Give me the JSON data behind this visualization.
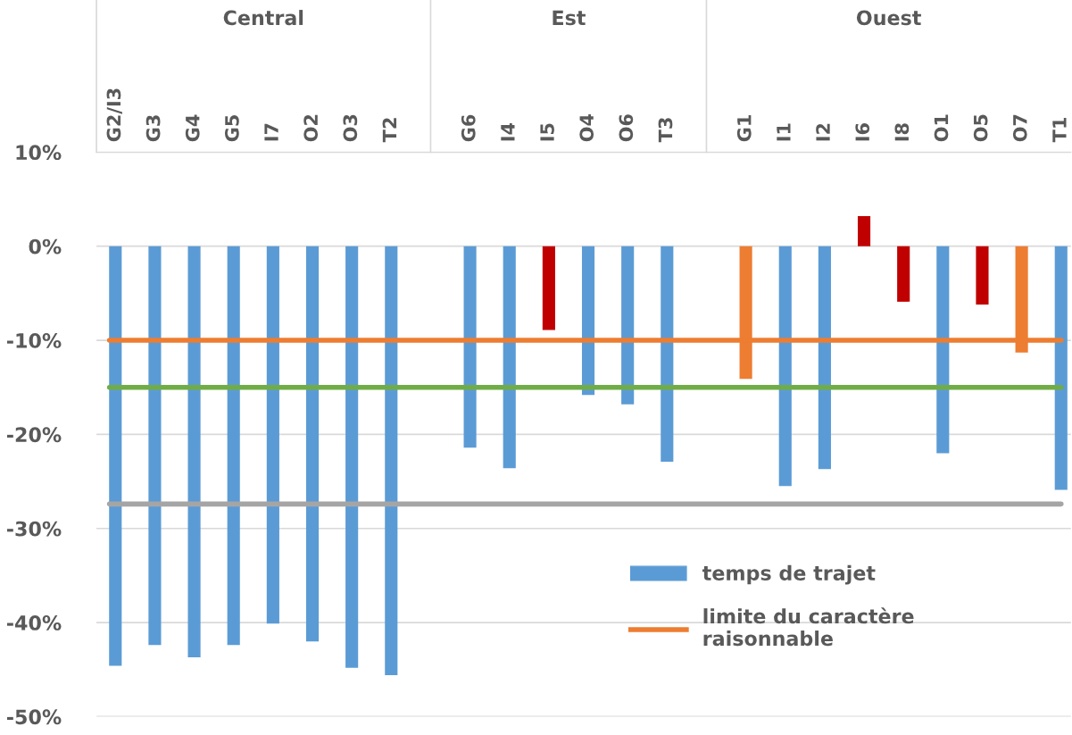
{
  "chart_data": {
    "type": "bar",
    "categories": [
      "G2/I3",
      "G3",
      "G4",
      "G5",
      "I7",
      "O2",
      "O3",
      "T2",
      null,
      "G6",
      "I4",
      "I5",
      "O4",
      "O6",
      "T3",
      null,
      "G1",
      "I1",
      "I2",
      "I6",
      "I8",
      "O1",
      "O5",
      "O7",
      "T1"
    ],
    "annotations": [
      "Central",
      "Est",
      "Ouest"
    ],
    "series": [
      {
        "name": "temps de trajet",
        "color": "#5b9bd5",
        "values": [
          -44.6,
          -42.4,
          -43.7,
          -42.4,
          -40.1,
          -42.0,
          -44.8,
          -45.6,
          null,
          -21.4,
          -23.6,
          -8.9,
          -15.8,
          -16.8,
          -22.9,
          null,
          -14.1,
          -25.5,
          -23.7,
          3.2,
          -5.9,
          -22.0,
          -6.2,
          -11.3,
          -25.9
        ],
        "colors": [
          "#5b9bd5",
          "#5b9bd5",
          "#5b9bd5",
          "#5b9bd5",
          "#5b9bd5",
          "#5b9bd5",
          "#5b9bd5",
          "#5b9bd5",
          null,
          "#5b9bd5",
          "#5b9bd5",
          "#c00000",
          "#5b9bd5",
          "#5b9bd5",
          "#5b9bd5",
          null,
          "#ed7d31",
          "#5b9bd5",
          "#5b9bd5",
          "#c00000",
          "#c00000",
          "#5b9bd5",
          "#c00000",
          "#ed7d31",
          "#5b9bd5"
        ]
      }
    ],
    "ref_lines": [
      {
        "axis": "y",
        "value": -10,
        "label": "limite du caractère raisonnable",
        "color": "#ed7d31"
      },
      {
        "axis": "y",
        "value": -15,
        "color": "#70ad47"
      },
      {
        "axis": "y",
        "value": -27.4,
        "color": "#a5a5a5"
      }
    ],
    "ylim": [
      -50,
      10
    ],
    "yticks": [
      {
        "value": -50,
        "label": "-50%"
      },
      {
        "value": -40,
        "label": "-40%"
      },
      {
        "value": -30,
        "label": "-30%"
      },
      {
        "value": -20,
        "label": "-20%"
      },
      {
        "value": -10,
        "label": "-10%"
      },
      {
        "value": 0,
        "label": "0%"
      },
      {
        "value": 10,
        "label": "10%"
      }
    ],
    "grid": "y",
    "legend": "bottom right"
  }
}
